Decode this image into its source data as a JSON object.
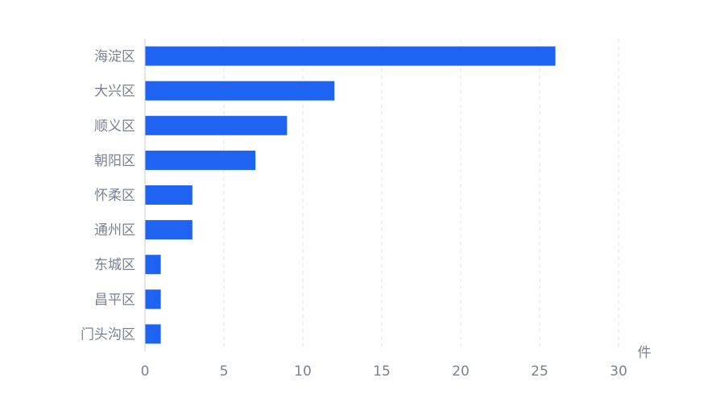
{
  "colors": {
    "bar": "#1f63f2",
    "text": "#7a8191",
    "grid": "#e3e6ec",
    "axis": "#c9ccd3"
  },
  "chart_data": {
    "type": "bar",
    "orientation": "horizontal",
    "categories": [
      "海淀区",
      "大兴区",
      "顺义区",
      "朝阳区",
      "怀柔区",
      "通州区",
      "东城区",
      "昌平区",
      "门头沟区"
    ],
    "values": [
      26,
      12,
      9,
      7,
      3,
      3,
      1,
      1,
      1
    ],
    "xlim": [
      0,
      30
    ],
    "xticks": [
      0,
      5,
      10,
      15,
      20,
      25,
      30
    ],
    "xunit": "件",
    "grid": "vertical dashed",
    "legend": "none"
  }
}
